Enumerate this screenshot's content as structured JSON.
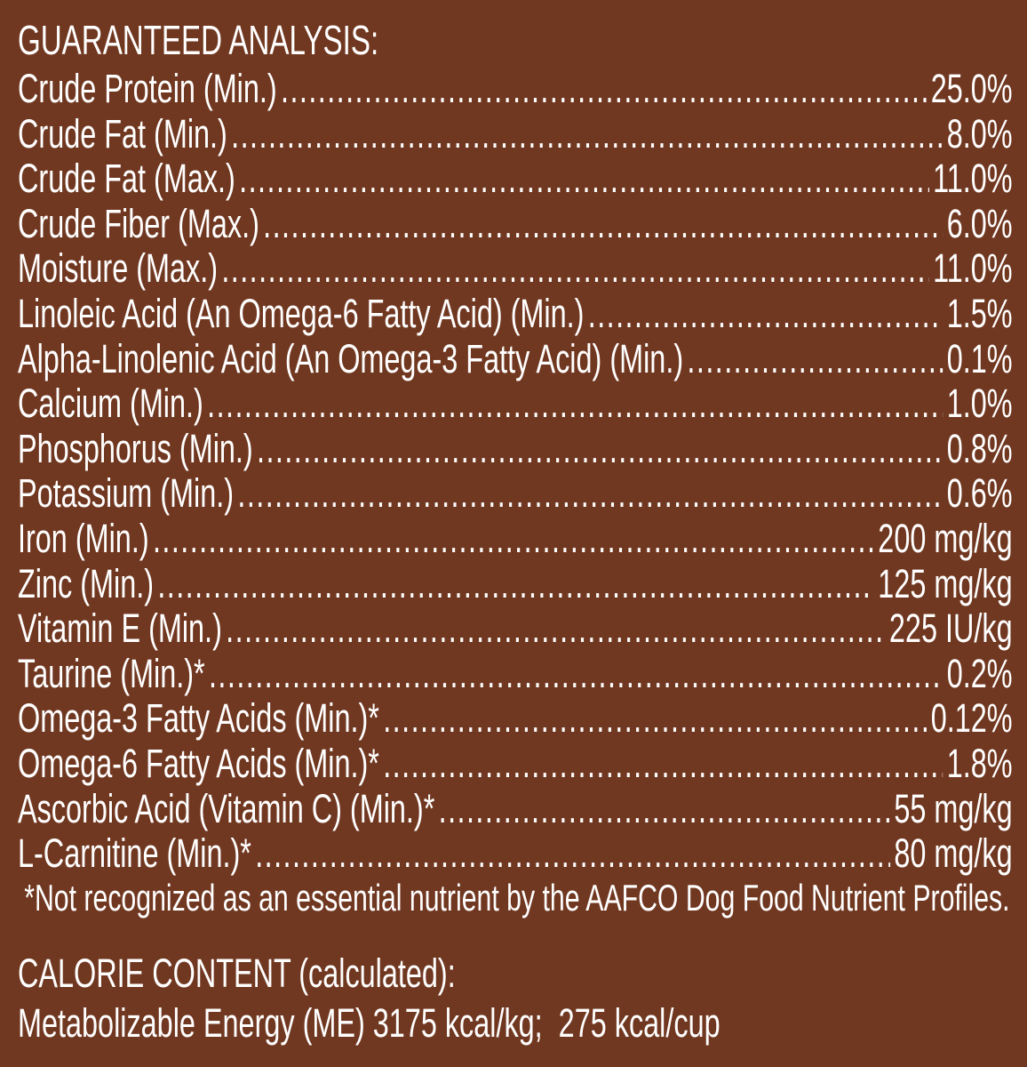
{
  "title": "GUARANTEED ANALYSIS:",
  "rows": [
    {
      "label": "Crude Protein (Min.)",
      "value": "25.0%"
    },
    {
      "label": "Crude Fat (Min.)",
      "value": "8.0%"
    },
    {
      "label": "Crude Fat (Max.)",
      "value": "11.0%"
    },
    {
      "label": "Crude Fiber (Max.)",
      "value": "6.0%"
    },
    {
      "label": "Moisture (Max.)",
      "value": "11.0%"
    },
    {
      "label": "Linoleic Acid (An Omega-6 Fatty Acid) (Min.)",
      "value": "1.5%"
    },
    {
      "label": "Alpha-Linolenic Acid (An Omega-3 Fatty Acid) (Min.)",
      "value": "0.1%"
    },
    {
      "label": "Calcium (Min.)",
      "value": "1.0%"
    },
    {
      "label": "Phosphorus (Min.)",
      "value": "0.8%"
    },
    {
      "label": "Potassium (Min.)",
      "value": "0.6%"
    },
    {
      "label": "Iron (Min.)",
      "value": "200 mg/kg"
    },
    {
      "label": "Zinc (Min.)",
      "value": "125 mg/kg"
    },
    {
      "label": "Vitamin E (Min.)",
      "value": "225 IU/kg"
    },
    {
      "label": "Taurine (Min.)*",
      "value": "0.2%"
    },
    {
      "label": "Omega-3 Fatty Acids (Min.)*",
      "value": "0.12%"
    },
    {
      "label": "Omega-6 Fatty Acids (Min.)*",
      "value": "1.8%"
    },
    {
      "label": "Ascorbic Acid (Vitamin C) (Min.)*",
      "value": "55 mg/kg"
    },
    {
      "label": "L-Carnitine (Min.)*",
      "value": "80 mg/kg"
    }
  ],
  "footnote": "*Not recognized as an essential nutrient by the AAFCO Dog Food Nutrient Profiles.",
  "calorie": {
    "heading": "CALORIE CONTENT (calculated):",
    "text": "Metabolizable Energy (ME) 3175 kcal/kg;  275 kcal/cup"
  },
  "colors": {
    "background": "#713821",
    "text": "#ffffff"
  }
}
